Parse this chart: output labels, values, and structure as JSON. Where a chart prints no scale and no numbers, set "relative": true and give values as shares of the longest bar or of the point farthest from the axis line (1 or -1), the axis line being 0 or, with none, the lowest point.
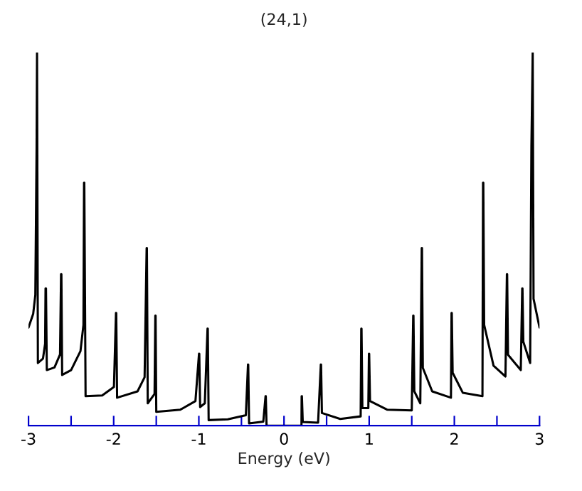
{
  "chart_data": {
    "type": "line",
    "title": "(24,1)",
    "xlabel": "Energy (eV)",
    "relative": true,
    "xlim": [
      -3,
      3
    ],
    "xticks": [
      -3,
      {
        "value": -2.5,
        "label": null
      },
      -2,
      {
        "value": -1.5,
        "label": null
      },
      -1,
      {
        "value": -0.5,
        "label": null
      },
      0,
      {
        "value": 0.5,
        "label": null
      },
      1,
      {
        "value": 1.5,
        "label": null
      },
      2,
      {
        "value": 2.5,
        "label": null
      },
      3
    ],
    "grid": false,
    "legend": false,
    "marker": "none",
    "line_style": "solid",
    "series": [
      {
        "color": "#000000",
        "x": [
          -3.0,
          -2.945,
          -2.92,
          -2.905,
          -2.9,
          -2.89,
          -2.83,
          -2.805,
          -2.8,
          -2.795,
          -2.785,
          -2.695,
          -2.63,
          -2.618,
          -2.614,
          -2.605,
          -2.5,
          -2.39,
          -2.355,
          -2.348,
          -2.345,
          -2.33,
          -2.135,
          -1.997,
          -1.973,
          -1.97,
          -1.96,
          -1.72,
          -1.637,
          -1.613,
          -1.61,
          -1.6,
          -1.52,
          -1.511,
          -1.508,
          -1.5,
          -1.217,
          -1.04,
          -0.998,
          -0.995,
          -0.985,
          -0.93,
          -0.898,
          -0.895,
          -0.885,
          -0.66,
          -0.448,
          -0.423,
          -0.42,
          -0.41,
          -0.243,
          -0.217,
          -0.214,
          -0.205,
          0.205,
          0.207,
          0.21,
          0.22,
          0.4,
          0.432,
          0.435,
          0.445,
          0.66,
          0.9,
          0.907,
          0.91,
          0.92,
          0.99,
          0.997,
          1.0,
          1.01,
          1.21,
          1.5,
          1.517,
          1.52,
          1.53,
          1.6,
          1.617,
          1.62,
          1.63,
          1.74,
          1.96,
          1.967,
          1.97,
          1.98,
          2.1,
          2.33,
          2.337,
          2.34,
          2.35,
          2.46,
          2.6,
          2.617,
          2.62,
          2.63,
          2.78,
          2.797,
          2.8,
          2.81,
          2.89,
          2.905,
          2.92,
          2.93,
          3.0
        ],
        "values": [
          0.263,
          0.3,
          0.35,
          0.75,
          1.0,
          0.168,
          0.18,
          0.22,
          0.368,
          0.368,
          0.149,
          0.156,
          0.191,
          0.406,
          0.406,
          0.136,
          0.149,
          0.2,
          0.27,
          0.651,
          0.651,
          0.079,
          0.081,
          0.104,
          0.302,
          0.302,
          0.075,
          0.092,
          0.13,
          0.476,
          0.476,
          0.06,
          0.085,
          0.295,
          0.295,
          0.037,
          0.043,
          0.066,
          0.193,
          0.193,
          0.05,
          0.06,
          0.26,
          0.26,
          0.015,
          0.017,
          0.028,
          0.164,
          0.164,
          0.006,
          0.011,
          0.079,
          0.079,
          0.0,
          0.0,
          0.079,
          0.079,
          0.01,
          0.008,
          0.164,
          0.164,
          0.034,
          0.018,
          0.025,
          0.26,
          0.26,
          0.047,
          0.047,
          0.193,
          0.193,
          0.066,
          0.043,
          0.041,
          0.295,
          0.295,
          0.092,
          0.06,
          0.476,
          0.476,
          0.155,
          0.092,
          0.075,
          0.302,
          0.302,
          0.142,
          0.088,
          0.079,
          0.651,
          0.651,
          0.27,
          0.161,
          0.132,
          0.406,
          0.406,
          0.19,
          0.149,
          0.368,
          0.368,
          0.225,
          0.168,
          0.75,
          1.0,
          0.34,
          0.263
        ]
      }
    ]
  }
}
